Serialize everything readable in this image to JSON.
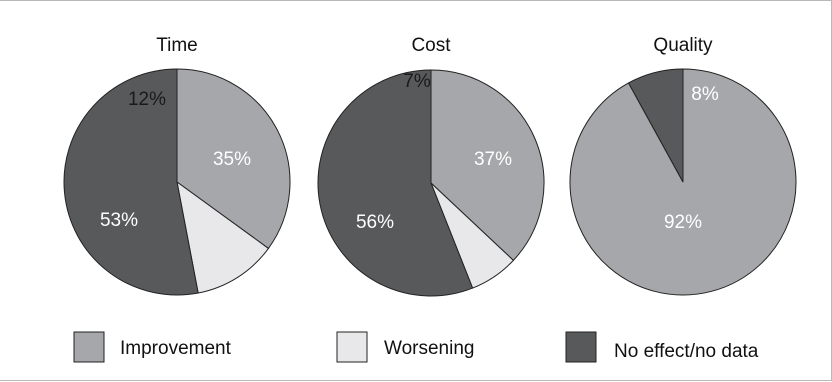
{
  "chart_data": [
    {
      "type": "pie",
      "title": "Time",
      "categories": [
        "Improvement",
        "Worsening",
        "No effect/no data"
      ],
      "values": [
        35,
        12,
        53
      ],
      "labels": [
        "35%",
        "12%",
        "53%"
      ]
    },
    {
      "type": "pie",
      "title": "Cost",
      "categories": [
        "Improvement",
        "Worsening",
        "No effect/no data"
      ],
      "values": [
        37,
        7,
        56
      ],
      "labels": [
        "37%",
        "7%",
        "56%"
      ]
    },
    {
      "type": "pie",
      "title": "Quality",
      "categories": [
        "Improvement",
        "No effect/no data"
      ],
      "values": [
        92,
        8
      ],
      "labels": [
        "92%",
        "8%"
      ]
    }
  ],
  "legend": {
    "placement": "bottom",
    "items": [
      {
        "key": "Improvement",
        "label": "Improvement",
        "color": "#a6a7aa"
      },
      {
        "key": "Worsening",
        "label": "Worsening",
        "color": "#e8e8ea"
      },
      {
        "key": "No effect/no data",
        "label": "No effect/no data",
        "color": "#58595b"
      }
    ]
  },
  "colors": {
    "Improvement": "#a6a7aa",
    "Worsening": "#e8e8ea",
    "No effect/no data": "#58595b",
    "label_on_dark": "#ffffff",
    "label_on_light": "#1a1a1a",
    "edge": "#222222"
  }
}
